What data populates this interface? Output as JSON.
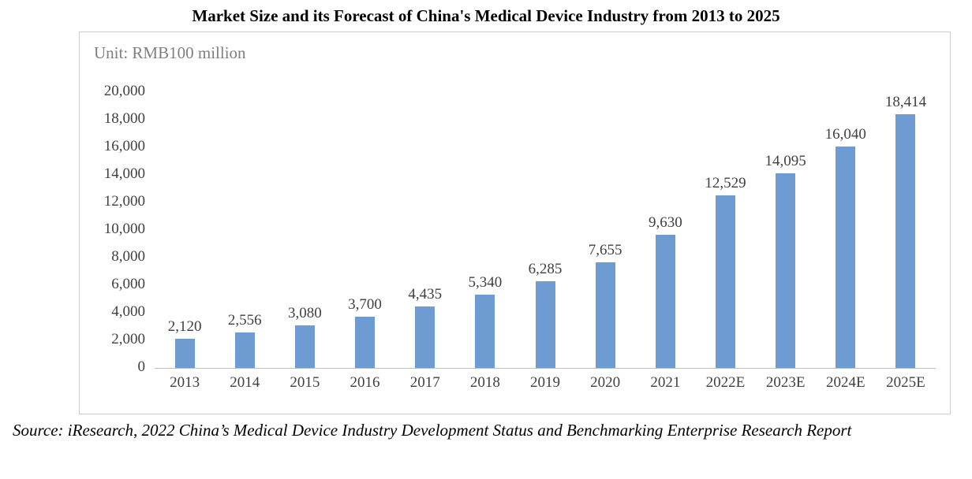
{
  "title": "Market Size and its Forecast of China's Medical Device Industry from 2013 to 2025",
  "unit_label": "Unit: RMB100 million",
  "source_note": "Source: iResearch, 2022 China’s Medical Device Industry Development Status and Benchmarking Enterprise Research Report",
  "colors": {
    "bar": "#6e9bd2",
    "axis_text": "#404040",
    "unit_text": "#7f7f7f",
    "border": "#cccccc"
  },
  "chart_data": {
    "type": "bar",
    "title": "Market Size and its Forecast of China's Medical Device Industry from 2013 to 2025",
    "unit": "RMB100 million",
    "categories": [
      "2013",
      "2014",
      "2015",
      "2016",
      "2017",
      "2018",
      "2019",
      "2020",
      "2021",
      "2022E",
      "2023E",
      "2024E",
      "2025E"
    ],
    "values": [
      2120,
      2556,
      3080,
      3700,
      4435,
      5340,
      6285,
      7655,
      9630,
      12529,
      14095,
      16040,
      18414
    ],
    "value_labels": [
      "2,120",
      "2,556",
      "3,080",
      "3,700",
      "4,435",
      "5,340",
      "6,285",
      "7,655",
      "9,630",
      "12,529",
      "14,095",
      "16,040",
      "18,414"
    ],
    "xlabel": "",
    "ylabel": "",
    "ylim": [
      0,
      20000
    ],
    "ytick_step": 2000,
    "ytick_labels": [
      "0",
      "2,000",
      "4,000",
      "6,000",
      "8,000",
      "10,000",
      "12,000",
      "14,000",
      "16,000",
      "18,000",
      "20,000"
    ],
    "grid": false,
    "legend_position": "none",
    "bar_color": "#6e9bd2"
  }
}
